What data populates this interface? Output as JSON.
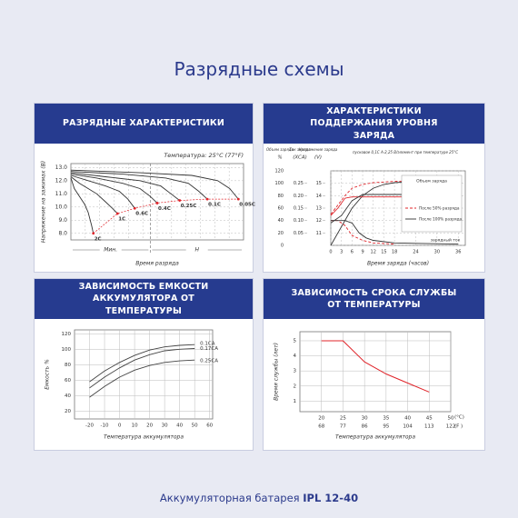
{
  "header": {
    "title": "Разрядные схемы"
  },
  "footer": {
    "text": "Аккумуляторная батарея",
    "model": "IPL 12-40"
  },
  "chart_data": [
    {
      "type": "line",
      "title": "РАЗРЯДНЫЕ ХАРАКТЕРИСТИКИ",
      "ylabel": "Напряжение на зажимах (В)",
      "annotation": "Температура: 25°C (77°F)",
      "x_segments": [
        "Мин.",
        "Н"
      ],
      "xlabel": "Время разряда",
      "xlim": [
        0,
        100
      ],
      "ylim": [
        7.5,
        13.3
      ],
      "yticks": [
        {
          "value": 8,
          "label": "8.0"
        },
        {
          "value": 9,
          "label": "9.0"
        },
        {
          "value": 10,
          "label": "10.0"
        },
        {
          "value": 11,
          "label": "11.0"
        },
        {
          "value": 12,
          "label": "12.0"
        },
        {
          "value": 13,
          "label": "13.0"
        }
      ],
      "grid": true,
      "series_labels": "end",
      "label_color": "#e0242a",
      "cutoff_line": true,
      "series": [
        {
          "name": "2C",
          "color": "#333333",
          "x": [
            0,
            2,
            5,
            8,
            10,
            12,
            13
          ],
          "values": [
            12.2,
            11.4,
            10.8,
            10.2,
            9.6,
            8.6,
            8.0
          ]
        },
        {
          "name": "1C",
          "color": "#333333",
          "x": [
            0,
            5,
            10,
            15,
            20,
            24,
            27
          ],
          "values": [
            12.3,
            11.8,
            11.4,
            11.0,
            10.4,
            9.9,
            9.5
          ]
        },
        {
          "name": "0.6C",
          "color": "#333333",
          "x": [
            0,
            10,
            20,
            28,
            33,
            37
          ],
          "values": [
            12.4,
            12.0,
            11.6,
            11.2,
            10.6,
            9.9
          ]
        },
        {
          "name": "0.4C",
          "color": "#333333",
          "x": [
            0,
            15,
            30,
            40,
            46,
            50
          ],
          "values": [
            12.5,
            12.2,
            11.8,
            11.4,
            10.8,
            10.3
          ]
        },
        {
          "name": "0.25C",
          "color": "#333333",
          "x": [
            0,
            20,
            40,
            52,
            58,
            63
          ],
          "values": [
            12.6,
            12.3,
            12.0,
            11.6,
            11.0,
            10.5
          ]
        },
        {
          "name": "0.1C",
          "color": "#333333",
          "x": [
            0,
            30,
            55,
            68,
            74,
            79
          ],
          "values": [
            12.7,
            12.5,
            12.2,
            11.8,
            11.2,
            10.6
          ]
        },
        {
          "name": "0.05C",
          "color": "#333333",
          "x": [
            0,
            40,
            70,
            85,
            92,
            97
          ],
          "values": [
            12.8,
            12.6,
            12.4,
            12.0,
            11.4,
            10.6
          ]
        }
      ]
    },
    {
      "type": "line",
      "title": "ХАРАКТЕРИСТИКИ ПОДДЕРЖАНИЯ УРОВНЯ ЗАРЯДА",
      "ylabel": "Объем заряда",
      "yunit": "%",
      "y2label": "Ток заряда",
      "y2unit": "(XCA)",
      "y3label": "Напряжение заряда",
      "y3unit": "(V)",
      "annotation": "пусковое 0,1С А-2,25 В/элемент при температуре 25°C",
      "xlabel": "Время заряда (часов)",
      "legend": "top-right",
      "legend_title": "Объем заряда",
      "current_label": "зарядный ток",
      "xlim": [
        0,
        38
      ],
      "xticks": [
        0,
        3,
        6,
        9,
        12,
        15,
        18,
        24,
        30,
        36
      ],
      "ylim": [
        0,
        120
      ],
      "yticks": [
        0,
        20,
        40,
        60,
        80,
        100,
        120
      ],
      "y2lim": [
        0,
        0.3
      ],
      "y2ticks": [
        0.05,
        {
          "value": 0.1,
          "label": "0.10"
        },
        0.15,
        {
          "value": 0.2,
          "label": "0.20"
        },
        0.25
      ],
      "y3lim": [
        10,
        16
      ],
      "y3ticks": [
        11,
        12,
        13,
        14,
        15
      ],
      "grid": true,
      "series": [
        {
          "name": "После 50% разряда",
          "color": "#e0242a",
          "dash": true,
          "axis": "y",
          "x": [
            0,
            2,
            4,
            6,
            9,
            12,
            18,
            24,
            36
          ],
          "values": [
            50,
            65,
            80,
            92,
            98,
            101,
            103,
            104,
            105
          ]
        },
        {
          "name": "После 100% разряда",
          "color": "#333333",
          "axis": "y",
          "x": [
            0,
            3,
            6,
            9,
            12,
            15,
            18,
            24,
            36
          ],
          "values": [
            0,
            30,
            60,
            80,
            92,
            98,
            101,
            103,
            105
          ]
        },
        {
          "color": "#e0242a",
          "axis": "y3",
          "x": [
            0,
            2,
            4,
            6,
            9,
            36
          ],
          "values": [
            12.4,
            13.0,
            13.8,
            13.9,
            13.9,
            13.9
          ]
        },
        {
          "color": "#333333",
          "axis": "y3",
          "x": [
            0,
            3,
            6,
            9,
            12,
            36
          ],
          "values": [
            11.8,
            12.4,
            13.6,
            14.1,
            14.1,
            14.1
          ]
        },
        {
          "color": "#e0242a",
          "dash": true,
          "axis": "y2",
          "x": [
            0,
            2,
            4,
            6,
            9,
            12,
            18
          ],
          "values": [
            0.1,
            0.1,
            0.08,
            0.04,
            0.02,
            0.01,
            0.005
          ]
        },
        {
          "color": "#333333",
          "axis": "y2",
          "x": [
            0,
            4,
            6,
            8,
            10,
            12,
            18,
            24,
            36
          ],
          "values": [
            0.1,
            0.1,
            0.09,
            0.05,
            0.03,
            0.02,
            0.01,
            0.008,
            0.005
          ]
        }
      ]
    },
    {
      "type": "line",
      "title": "ЗАВИСИМОСТЬ ЕМКОСТИ АККУМУЛЯТОРА ОТ ТЕМПЕРАТУРЫ",
      "ylabel": "Емкость %",
      "xlabel": "Температура аккумулятора",
      "xlim": [
        -30,
        62
      ],
      "xticks": [
        -20,
        -10,
        0,
        10,
        20,
        30,
        40,
        50,
        60
      ],
      "ylim": [
        10,
        125
      ],
      "yticks": [
        20,
        40,
        60,
        80,
        100,
        120
      ],
      "grid": true,
      "series_labels": "end",
      "label_color": "#e0242a",
      "x": [
        -20,
        -10,
        0,
        10,
        20,
        30,
        40,
        50
      ],
      "series": [
        {
          "name": "0.1CA",
          "color": "#444444",
          "values": [
            58,
            72,
            83,
            92,
            99,
            103,
            105,
            106
          ]
        },
        {
          "name": "0.17CA",
          "color": "#444444",
          "values": [
            50,
            64,
            76,
            86,
            93,
            98,
            100,
            101
          ]
        },
        {
          "name": "0.25CA",
          "color": "#444444",
          "values": [
            38,
            52,
            64,
            73,
            79,
            83,
            85,
            86
          ]
        }
      ]
    },
    {
      "type": "line",
      "title": "ЗАВИСИМОСТЬ СРОКА СЛУЖБЫ ОТ ТЕМПЕРАТУРЫ",
      "ylabel": "Время службы (лет)",
      "xlabel": "Температура аккумулятора",
      "xunit": "(°C)",
      "x2unit": "(F )",
      "xlim": [
        15,
        50
      ],
      "xticks": [
        20,
        25,
        30,
        35,
        40,
        45,
        50
      ],
      "x2ticks": [
        {
          "value": 20,
          "label": "68"
        },
        {
          "value": 25,
          "label": "77"
        },
        {
          "value": 30,
          "label": "86"
        },
        {
          "value": 35,
          "label": "95"
        },
        {
          "value": 40,
          "label": "104"
        },
        {
          "value": 45,
          "label": "113"
        },
        {
          "value": 50,
          "label": "122"
        }
      ],
      "ylim": [
        0.3,
        5.6
      ],
      "yticks": [
        1,
        2,
        3,
        4,
        5
      ],
      "grid": true,
      "x": [
        20,
        25,
        30,
        35,
        40,
        45
      ],
      "series": [
        {
          "color": "#e0242a",
          "values": [
            5,
            5,
            3.6,
            2.8,
            2.2,
            1.6
          ]
        }
      ]
    }
  ]
}
